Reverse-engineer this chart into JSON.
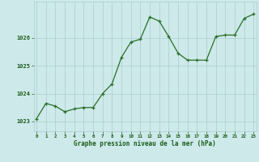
{
  "x": [
    0,
    1,
    2,
    3,
    4,
    5,
    6,
    7,
    8,
    9,
    10,
    11,
    12,
    13,
    14,
    15,
    16,
    17,
    18,
    19,
    20,
    21,
    22,
    23
  ],
  "y": [
    1023.1,
    1023.65,
    1023.55,
    1023.35,
    1023.45,
    1023.5,
    1023.5,
    1024.0,
    1024.35,
    1025.3,
    1025.85,
    1025.95,
    1026.75,
    1026.6,
    1026.05,
    1025.45,
    1025.2,
    1025.2,
    1025.2,
    1026.05,
    1026.1,
    1026.1,
    1026.7,
    1026.85
  ],
  "xlim": [
    -0.3,
    23.3
  ],
  "ylim": [
    1022.65,
    1027.3
  ],
  "yticks": [
    1023,
    1024,
    1025,
    1026
  ],
  "xticks": [
    0,
    1,
    2,
    3,
    4,
    5,
    6,
    7,
    8,
    9,
    10,
    11,
    12,
    13,
    14,
    15,
    16,
    17,
    18,
    19,
    20,
    21,
    22,
    23
  ],
  "xlabel": "Graphe pression niveau de la mer (hPa)",
  "line_color": "#2a6e2a",
  "marker_color": "#2a6e2a",
  "bg_color": "#cde9e9",
  "grid_color": "#aacfcf",
  "tick_label_color": "#1a5c1a",
  "xlabel_color": "#1a5c1a"
}
